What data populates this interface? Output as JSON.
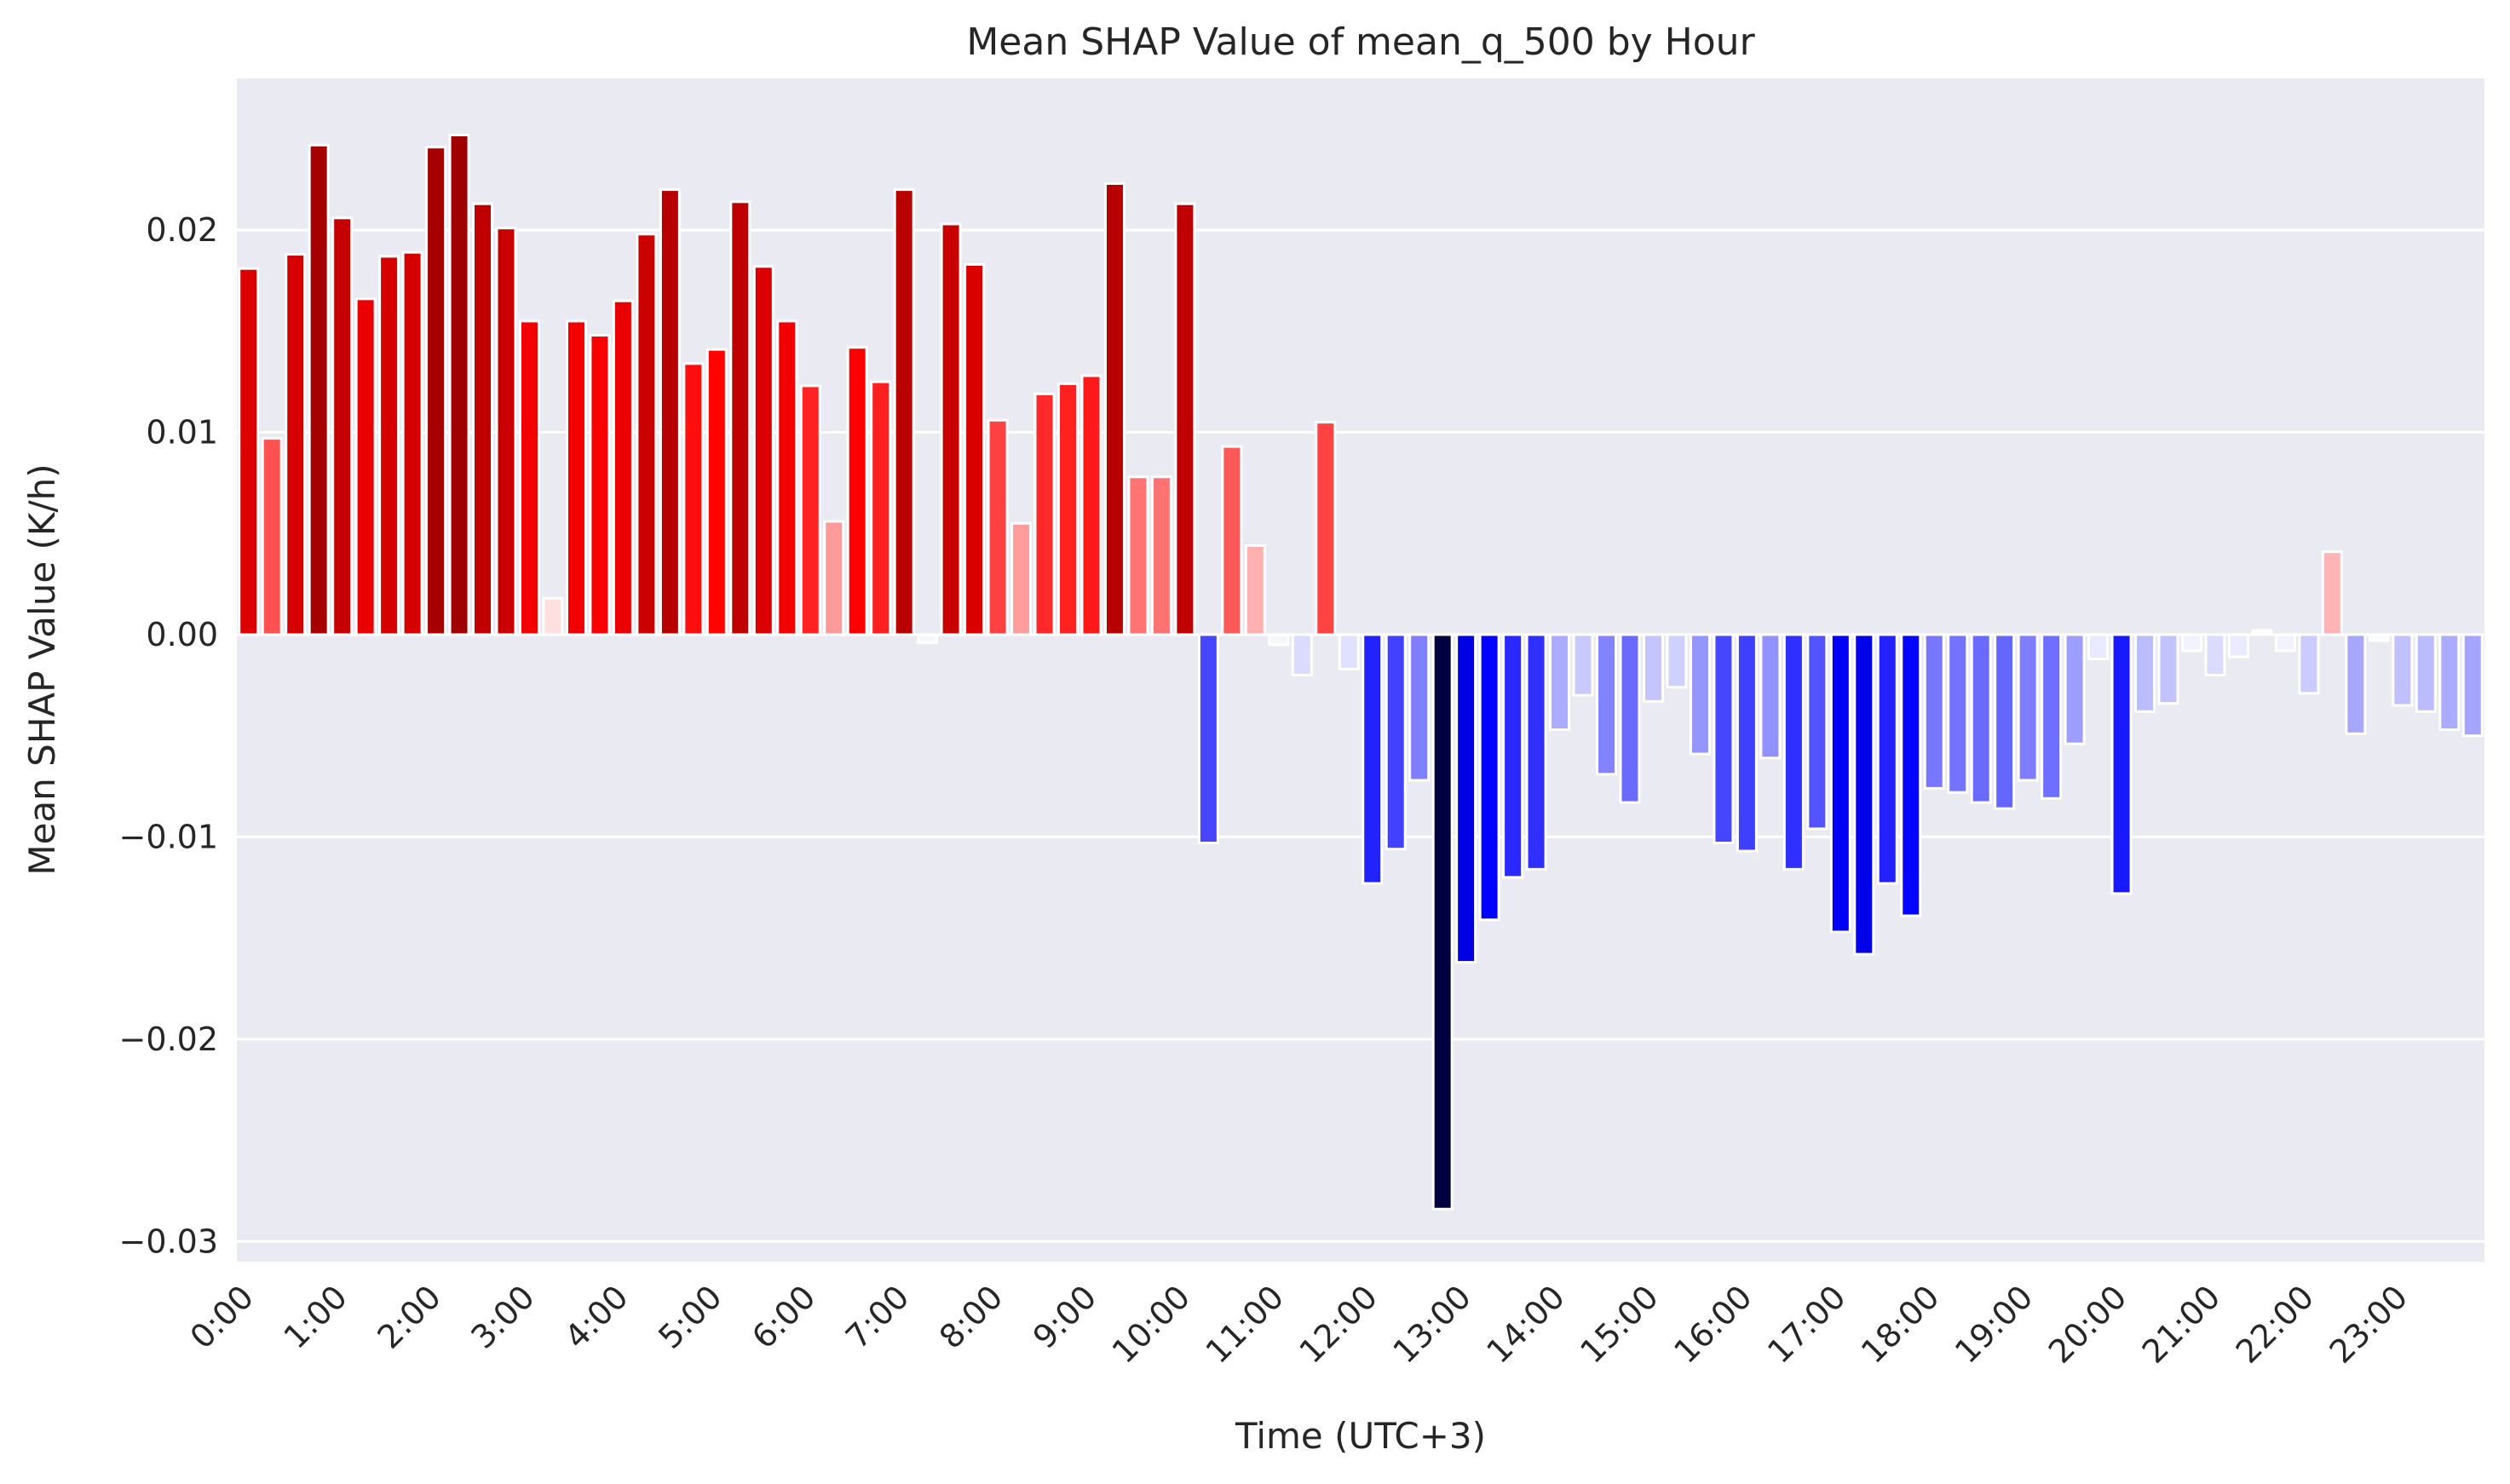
{
  "chart_data": {
    "type": "bar",
    "title": "Mean SHAP Value of mean_q_500 by Hour",
    "xlabel": "Time (UTC+3)",
    "ylabel": "Mean SHAP Value (K/h)",
    "ylim": [
      -0.031,
      0.0275
    ],
    "yticks": [
      {
        "value": 0.02,
        "label": "0.02"
      },
      {
        "value": 0.01,
        "label": "0.01"
      },
      {
        "value": 0.0,
        "label": "0.00"
      },
      {
        "value": -0.01,
        "label": "−0.01"
      },
      {
        "value": -0.02,
        "label": "−0.02"
      },
      {
        "value": -0.03,
        "label": "−0.03"
      }
    ],
    "xticks": [
      "0:00",
      "1:00",
      "2:00",
      "3:00",
      "4:00",
      "5:00",
      "6:00",
      "7:00",
      "8:00",
      "9:00",
      "10:00",
      "11:00",
      "12:00",
      "13:00",
      "14:00",
      "15:00",
      "16:00",
      "17:00",
      "18:00",
      "19:00",
      "20:00",
      "21:00",
      "22:00",
      "23:00"
    ],
    "xtick_every": 4,
    "grid": true,
    "background": "#eaeaf2",
    "categories": [
      "0:00",
      "0:15",
      "0:30",
      "0:45",
      "1:00",
      "1:15",
      "1:30",
      "1:45",
      "2:00",
      "2:15",
      "2:30",
      "2:45",
      "3:00",
      "3:15",
      "3:30",
      "3:45",
      "4:00",
      "4:15",
      "4:30",
      "4:45",
      "5:00",
      "5:15",
      "5:30",
      "5:45",
      "6:00",
      "6:15",
      "6:30",
      "6:45",
      "7:00",
      "7:15",
      "7:30",
      "7:45",
      "8:00",
      "8:15",
      "8:30",
      "8:45",
      "9:00",
      "9:15",
      "9:30",
      "9:45",
      "10:00",
      "10:15",
      "10:30",
      "10:45",
      "11:00",
      "11:15",
      "11:30",
      "11:45",
      "12:00",
      "12:15",
      "12:30",
      "12:45",
      "13:00",
      "13:15",
      "13:30",
      "13:45",
      "14:00",
      "14:15",
      "14:30",
      "14:45",
      "15:00",
      "15:15",
      "15:30",
      "15:45",
      "16:00",
      "16:15",
      "16:30",
      "16:45",
      "17:00",
      "17:15",
      "17:30",
      "17:45",
      "18:00",
      "18:15",
      "18:30",
      "18:45",
      "19:00",
      "19:15",
      "19:30",
      "19:45",
      "20:00",
      "20:15",
      "20:30",
      "20:45",
      "21:00",
      "21:15",
      "21:30",
      "21:45",
      "22:00",
      "22:15",
      "22:30",
      "22:45",
      "23:00",
      "23:15",
      "23:30",
      "23:45"
    ],
    "values": [
      0.0181,
      0.0097,
      0.0188,
      0.0242,
      0.0206,
      0.0166,
      0.0187,
      0.0189,
      0.0241,
      0.0247,
      0.0213,
      0.0201,
      0.0155,
      0.0018,
      0.0155,
      0.0148,
      0.0165,
      0.0198,
      0.022,
      0.0134,
      0.0141,
      0.0214,
      0.0182,
      0.0155,
      0.0123,
      0.0056,
      0.0142,
      0.0125,
      0.022,
      -0.0004,
      0.0203,
      0.0183,
      0.0106,
      0.0055,
      0.0119,
      0.0124,
      0.0128,
      0.0223,
      0.0078,
      0.0078,
      0.0213,
      -0.0103,
      0.0093,
      0.0044,
      -0.0005,
      -0.002,
      0.0105,
      -0.0017,
      -0.0123,
      -0.0106,
      -0.0072,
      -0.0284,
      -0.0162,
      -0.0141,
      -0.012,
      -0.0116,
      -0.0047,
      -0.003,
      -0.0069,
      -0.0083,
      -0.0033,
      -0.0026,
      -0.0059,
      -0.0103,
      -0.0107,
      -0.0061,
      -0.0116,
      -0.0096,
      -0.0147,
      -0.0158,
      -0.0123,
      -0.0139,
      -0.0076,
      -0.0078,
      -0.0083,
      -0.0086,
      -0.0072,
      -0.0081,
      -0.0054,
      -0.0012,
      -0.0128,
      -0.0038,
      -0.0034,
      -0.0008,
      -0.002,
      -0.0011,
      0.0002,
      -0.0008,
      -0.0029,
      0.0041,
      -0.0049,
      -0.0003,
      -0.0035,
      -0.0038,
      -0.0047,
      -0.005
    ]
  }
}
